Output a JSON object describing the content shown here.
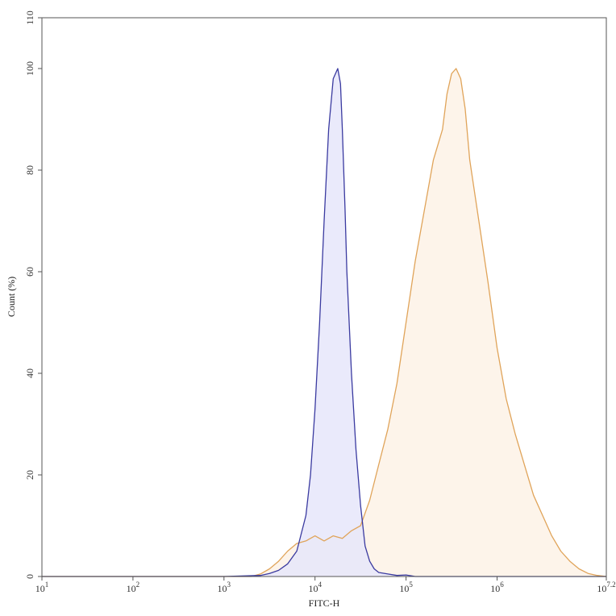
{
  "chart_data": {
    "type": "area",
    "xlabel": "FITC-H",
    "ylabel": "Count (%)",
    "x_scale": "log10",
    "xlim": [
      1,
      7.2
    ],
    "ylim": [
      0,
      110
    ],
    "x_ticks": [
      {
        "exp": 1,
        "label": "10",
        "sup": "1"
      },
      {
        "exp": 2,
        "label": "10",
        "sup": "2"
      },
      {
        "exp": 3,
        "label": "10",
        "sup": "3"
      },
      {
        "exp": 4,
        "label": "10",
        "sup": "4"
      },
      {
        "exp": 5,
        "label": "10",
        "sup": "5"
      },
      {
        "exp": 6,
        "label": "10",
        "sup": "6"
      },
      {
        "exp": 7.2,
        "label": "10",
        "sup": "7.2"
      }
    ],
    "y_ticks": [
      0,
      20,
      40,
      60,
      80,
      100,
      110
    ],
    "grid": false,
    "legend": "none",
    "series": [
      {
        "line_color": "#3a3aa0",
        "fill_color": "#e6e6fa",
        "x_log10": [
          1.0,
          3.0,
          3.4,
          3.5,
          3.6,
          3.7,
          3.8,
          3.9,
          3.95,
          4.0,
          4.05,
          4.1,
          4.15,
          4.2,
          4.25,
          4.28,
          4.3,
          4.33,
          4.35,
          4.4,
          4.45,
          4.5,
          4.55,
          4.6,
          4.65,
          4.7,
          4.8,
          4.9,
          5.0,
          5.1,
          7.2
        ],
        "y": [
          0,
          0,
          0.2,
          0.6,
          1.2,
          2.5,
          5,
          12,
          20,
          33,
          50,
          70,
          88,
          98,
          100,
          97,
          88,
          72,
          60,
          40,
          25,
          14,
          6,
          3,
          1.5,
          0.8,
          0.5,
          0.2,
          0.3,
          0,
          0
        ]
      },
      {
        "line_color": "#e0a45a",
        "fill_color": "#fdf4ea",
        "x_log10": [
          1.0,
          3.3,
          3.4,
          3.5,
          3.6,
          3.7,
          3.8,
          3.9,
          4.0,
          4.1,
          4.2,
          4.3,
          4.4,
          4.5,
          4.6,
          4.7,
          4.8,
          4.9,
          5.0,
          5.1,
          5.2,
          5.3,
          5.4,
          5.45,
          5.5,
          5.55,
          5.6,
          5.65,
          5.7,
          5.8,
          5.9,
          6.0,
          6.1,
          6.2,
          6.3,
          6.4,
          6.5,
          6.6,
          6.7,
          6.8,
          6.9,
          7.0,
          7.1,
          7.2
        ],
        "y": [
          0,
          0,
          0.5,
          1.5,
          3,
          5,
          6.5,
          7,
          8,
          7,
          8,
          7.5,
          9,
          10,
          15,
          22,
          29,
          38,
          50,
          62,
          72,
          82,
          88,
          95,
          99,
          100,
          98,
          92,
          82,
          70,
          58,
          45,
          35,
          28,
          22,
          16,
          12,
          8,
          5,
          3,
          1.5,
          0.6,
          0.2,
          0
        ]
      }
    ]
  }
}
